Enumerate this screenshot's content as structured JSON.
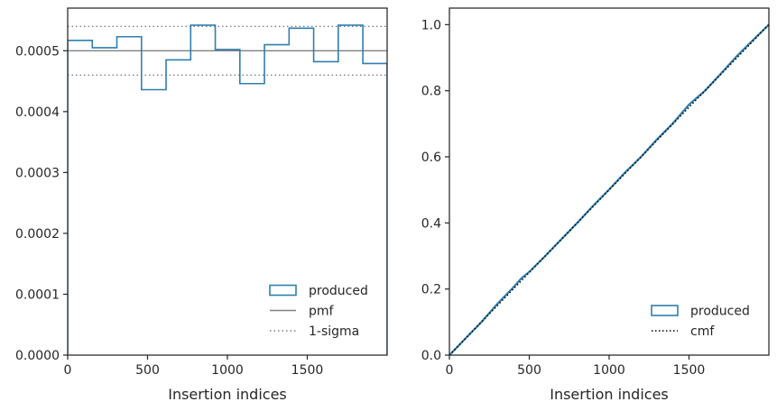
{
  "colors": {
    "produced": "#2f7fb0",
    "pmf": "#808080",
    "sigma": "#808080",
    "cmf": "#000000",
    "axis": "#262626"
  },
  "chart_data": [
    {
      "type": "histogram-step",
      "xlabel": "Insertion indices",
      "ylabel": "",
      "xlim": [
        0,
        2000
      ],
      "ylim": [
        0,
        0.00057
      ],
      "x_ticks": [
        0,
        500,
        1000,
        1500
      ],
      "x_tick_labels": [
        "0",
        "500",
        "1000",
        "1500"
      ],
      "y_ticks": [
        0,
        0.0001,
        0.0002,
        0.0003,
        0.0004,
        0.0005
      ],
      "y_tick_labels": [
        "0.0000",
        "0.0001",
        "0.0002",
        "0.0003",
        "0.0004",
        "0.0005"
      ],
      "bin_edges": [
        0,
        154,
        308,
        462,
        616,
        770,
        924,
        1078,
        1232,
        1386,
        1540,
        1694,
        1848,
        2000
      ],
      "series": [
        {
          "name": "produced",
          "values": [
            0.000517,
            0.000505,
            0.000523,
            0.000436,
            0.000485,
            0.000542,
            0.000502,
            0.000446,
            0.00051,
            0.000537,
            0.000482,
            0.000542,
            0.000479
          ]
        }
      ],
      "pmf": 0.0005,
      "sigma_band": [
        0.00046,
        0.00054
      ],
      "legend": {
        "position": "lower-right",
        "entries": [
          "produced",
          "pmf",
          "1-sigma"
        ]
      }
    },
    {
      "type": "line",
      "xlabel": "Insertion indices",
      "ylabel": "",
      "xlim": [
        0,
        2000
      ],
      "ylim": [
        0,
        1.05
      ],
      "x_ticks": [
        0,
        500,
        1000,
        1500
      ],
      "x_tick_labels": [
        "0",
        "500",
        "1000",
        "1500"
      ],
      "y_ticks": [
        0,
        0.2,
        0.4,
        0.6,
        0.8,
        1.0
      ],
      "y_tick_labels": [
        "0.0",
        "0.2",
        "0.4",
        "0.6",
        "0.8",
        "1.0"
      ],
      "series": [
        {
          "name": "produced",
          "x": [
            0,
            100,
            200,
            300,
            400,
            450,
            500,
            600,
            700,
            800,
            900,
            1000,
            1100,
            1200,
            1300,
            1400,
            1500,
            1600,
            1700,
            1800,
            1900,
            2000
          ],
          "y": [
            0,
            0.05,
            0.1,
            0.155,
            0.205,
            0.232,
            0.252,
            0.3,
            0.35,
            0.4,
            0.452,
            0.501,
            0.553,
            0.6,
            0.653,
            0.702,
            0.758,
            0.8,
            0.852,
            0.905,
            0.953,
            1.0
          ]
        },
        {
          "name": "cmf",
          "x": [
            0,
            2000
          ],
          "y": [
            0,
            1.0
          ]
        }
      ],
      "legend": {
        "position": "lower-right",
        "entries": [
          "produced",
          "cmf"
        ]
      }
    }
  ]
}
